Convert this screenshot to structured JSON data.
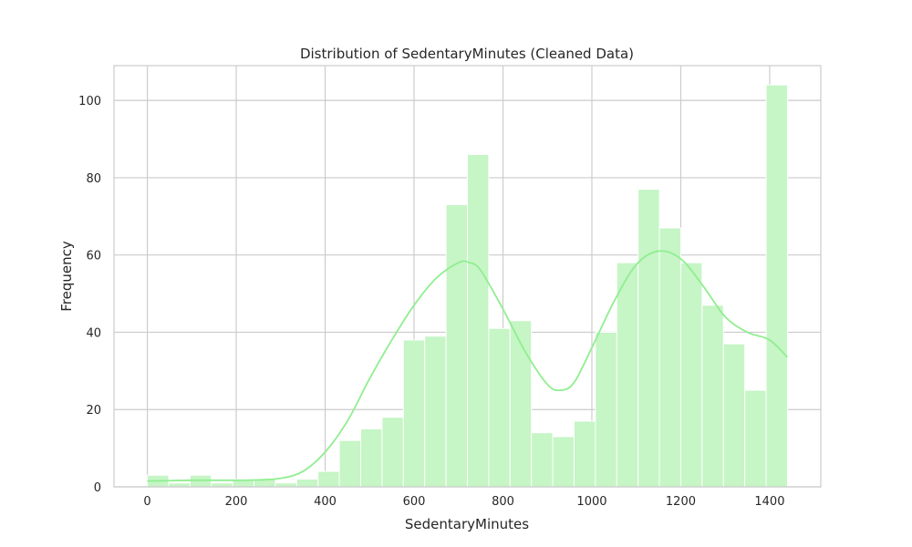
{
  "chart_data": {
    "type": "bar",
    "title": "Distribution of SedentaryMinutes (Cleaned Data)",
    "xlabel": "SedentaryMinutes",
    "ylabel": "Frequency",
    "xlim": [
      -75,
      1515
    ],
    "ylim": [
      0,
      109
    ],
    "xticks": [
      0,
      200,
      400,
      600,
      800,
      1000,
      1200,
      1400
    ],
    "yticks": [
      0,
      20,
      40,
      60,
      80,
      100
    ],
    "grid": true,
    "bar_color": "#c6f5c6",
    "kde_color": "#90ee90",
    "bins": [
      {
        "x0": 0,
        "x1": 48,
        "count": 3
      },
      {
        "x0": 48,
        "x1": 96,
        "count": 1
      },
      {
        "x0": 96,
        "x1": 144,
        "count": 3
      },
      {
        "x0": 144,
        "x1": 192,
        "count": 1
      },
      {
        "x0": 192,
        "x1": 240,
        "count": 2
      },
      {
        "x0": 240,
        "x1": 288,
        "count": 2
      },
      {
        "x0": 288,
        "x1": 336,
        "count": 1
      },
      {
        "x0": 336,
        "x1": 384,
        "count": 2
      },
      {
        "x0": 384,
        "x1": 432,
        "count": 4
      },
      {
        "x0": 432,
        "x1": 480,
        "count": 12
      },
      {
        "x0": 480,
        "x1": 528,
        "count": 15
      },
      {
        "x0": 528,
        "x1": 576,
        "count": 18
      },
      {
        "x0": 576,
        "x1": 624,
        "count": 38
      },
      {
        "x0": 624,
        "x1": 672,
        "count": 39
      },
      {
        "x0": 672,
        "x1": 720,
        "count": 73
      },
      {
        "x0": 720,
        "x1": 768,
        "count": 86
      },
      {
        "x0": 768,
        "x1": 816,
        "count": 41
      },
      {
        "x0": 816,
        "x1": 864,
        "count": 43
      },
      {
        "x0": 864,
        "x1": 912,
        "count": 14
      },
      {
        "x0": 912,
        "x1": 960,
        "count": 13
      },
      {
        "x0": 960,
        "x1": 1008,
        "count": 17
      },
      {
        "x0": 1008,
        "x1": 1056,
        "count": 40
      },
      {
        "x0": 1056,
        "x1": 1104,
        "count": 58
      },
      {
        "x0": 1104,
        "x1": 1152,
        "count": 77
      },
      {
        "x0": 1152,
        "x1": 1200,
        "count": 67
      },
      {
        "x0": 1200,
        "x1": 1248,
        "count": 58
      },
      {
        "x0": 1248,
        "x1": 1296,
        "count": 47
      },
      {
        "x0": 1296,
        "x1": 1344,
        "count": 37
      },
      {
        "x0": 1344,
        "x1": 1392,
        "count": 25
      },
      {
        "x0": 1392,
        "x1": 1440,
        "count": 104
      }
    ],
    "kde": {
      "x": [
        0,
        50,
        100,
        150,
        200,
        250,
        300,
        350,
        400,
        450,
        500,
        550,
        600,
        650,
        700,
        725,
        750,
        800,
        850,
        900,
        930,
        960,
        1000,
        1050,
        1100,
        1150,
        1200,
        1250,
        1300,
        1350,
        1400,
        1440
      ],
      "y": [
        1.5,
        1.6,
        1.7,
        1.7,
        1.7,
        1.8,
        2.2,
        4,
        9,
        17,
        28,
        38,
        47,
        54,
        58,
        58,
        56,
        46,
        35,
        26.5,
        25,
        27,
        36,
        48,
        57.5,
        61,
        59,
        52,
        44,
        40,
        38,
        33.5
      ]
    }
  }
}
